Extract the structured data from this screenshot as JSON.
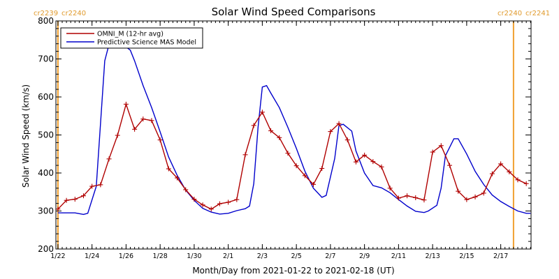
{
  "chart_data": {
    "type": "line",
    "title": "Solar Wind Speed Comparisons",
    "xlabel": "Month/Day from 2021-01-22 to 2021-02-18 (UT)",
    "ylabel": "Solar Wind Speed (km/s)",
    "xlim": [
      "2021-01-22",
      "2021-02-18"
    ],
    "ylim": [
      200,
      800
    ],
    "x_ticks": [
      "1/22",
      "1/24",
      "1/26",
      "1/28",
      "1/30",
      "2/1",
      "2/3",
      "2/5",
      "2/7",
      "2/9",
      "2/11",
      "2/13",
      "2/15",
      "2/17"
    ],
    "y_ticks": [
      200,
      300,
      400,
      500,
      600,
      700,
      800
    ],
    "legend_position": "top-left",
    "cr_labels": {
      "left": [
        "cr2239",
        "cr2240"
      ],
      "right": [
        "cr2240",
        "cr2241"
      ]
    },
    "cr_boundaries": [
      "2021-01-22",
      "2021-02-17 18:00"
    ],
    "series": [
      {
        "name": "OMNI_M (12-hr avg)",
        "color": "#b00000",
        "marker": "plus",
        "points": [
          [
            "2021-01-22 00:00",
            305
          ],
          [
            "2021-01-22 12:00",
            328
          ],
          [
            "2021-01-23 00:00",
            331
          ],
          [
            "2021-01-23 12:00",
            340
          ],
          [
            "2021-01-24 00:00",
            365
          ],
          [
            "2021-01-24 12:00",
            369
          ],
          [
            "2021-01-25 00:00",
            437
          ],
          [
            "2021-01-25 12:00",
            499
          ],
          [
            "2021-01-26 00:00",
            581
          ],
          [
            "2021-01-26 12:00",
            515
          ],
          [
            "2021-01-27 00:00",
            542
          ],
          [
            "2021-01-27 12:00",
            538
          ],
          [
            "2021-01-28 00:00",
            487
          ],
          [
            "2021-01-28 12:00",
            411
          ],
          [
            "2021-01-29 00:00",
            387
          ],
          [
            "2021-01-29 12:00",
            356
          ],
          [
            "2021-01-30 00:00",
            331
          ],
          [
            "2021-01-30 12:00",
            316
          ],
          [
            "2021-01-31 00:00",
            305
          ],
          [
            "2021-01-31 12:00",
            319
          ],
          [
            "2021-02-01 00:00",
            323
          ],
          [
            "2021-02-01 12:00",
            330
          ],
          [
            "2021-02-02 00:00",
            448
          ],
          [
            "2021-02-02 12:00",
            525
          ],
          [
            "2021-02-03 00:00",
            560
          ],
          [
            "2021-02-03 12:00",
            511
          ],
          [
            "2021-02-04 00:00",
            493
          ],
          [
            "2021-02-04 12:00",
            452
          ],
          [
            "2021-02-05 00:00",
            419
          ],
          [
            "2021-02-05 12:00",
            393
          ],
          [
            "2021-02-06 00:00",
            370
          ],
          [
            "2021-02-06 12:00",
            412
          ],
          [
            "2021-02-07 00:00",
            509
          ],
          [
            "2021-02-07 12:00",
            530
          ],
          [
            "2021-02-08 00:00",
            487
          ],
          [
            "2021-02-08 12:00",
            429
          ],
          [
            "2021-02-09 00:00",
            447
          ],
          [
            "2021-02-09 12:00",
            430
          ],
          [
            "2021-02-10 00:00",
            416
          ],
          [
            "2021-02-10 12:00",
            360
          ],
          [
            "2021-02-11 00:00",
            334
          ],
          [
            "2021-02-11 12:00",
            340
          ],
          [
            "2021-02-12 00:00",
            335
          ],
          [
            "2021-02-12 12:00",
            329
          ],
          [
            "2021-02-13 00:00",
            455
          ],
          [
            "2021-02-13 12:00",
            472
          ],
          [
            "2021-02-14 00:00",
            420
          ],
          [
            "2021-02-14 12:00",
            352
          ],
          [
            "2021-02-15 00:00",
            330
          ],
          [
            "2021-02-15 12:00",
            337
          ],
          [
            "2021-02-16 00:00",
            347
          ],
          [
            "2021-02-16 12:00",
            398
          ],
          [
            "2021-02-17 00:00",
            424
          ],
          [
            "2021-02-17 12:00",
            403
          ],
          [
            "2021-02-18 00:00",
            382
          ],
          [
            "2021-02-18 12:00",
            372
          ]
        ]
      },
      {
        "name": "Predictive Science MAS Model",
        "color": "#0000cc",
        "marker": "none",
        "points": [
          [
            "2021-01-22 00:00",
            295
          ],
          [
            "2021-01-22 18:00",
            295
          ],
          [
            "2021-01-23 00:00",
            295
          ],
          [
            "2021-01-23 12:00",
            291
          ],
          [
            "2021-01-23 18:00",
            294
          ],
          [
            "2021-01-24 06:00",
            365
          ],
          [
            "2021-01-24 18:00",
            695
          ],
          [
            "2021-01-25 00:00",
            738
          ],
          [
            "2021-01-25 12:00",
            741
          ],
          [
            "2021-01-25 18:00",
            740
          ],
          [
            "2021-01-26 06:00",
            723
          ],
          [
            "2021-01-26 12:00",
            695
          ],
          [
            "2021-01-27 00:00",
            630
          ],
          [
            "2021-01-27 12:00",
            572
          ],
          [
            "2021-01-28 00:00",
            508
          ],
          [
            "2021-01-28 12:00",
            442
          ],
          [
            "2021-01-29 00:00",
            394
          ],
          [
            "2021-01-29 12:00",
            355
          ],
          [
            "2021-01-30 00:00",
            328
          ],
          [
            "2021-01-30 12:00",
            307
          ],
          [
            "2021-01-31 00:00",
            297
          ],
          [
            "2021-01-31 12:00",
            292
          ],
          [
            "2021-02-01 00:00",
            294
          ],
          [
            "2021-02-01 12:00",
            301
          ],
          [
            "2021-02-02 00:00",
            306
          ],
          [
            "2021-02-02 06:00",
            313
          ],
          [
            "2021-02-02 12:00",
            372
          ],
          [
            "2021-02-02 18:00",
            520
          ],
          [
            "2021-02-03 00:00",
            626
          ],
          [
            "2021-02-03 06:00",
            630
          ],
          [
            "2021-02-03 12:00",
            610
          ],
          [
            "2021-02-04 00:00",
            572
          ],
          [
            "2021-02-04 12:00",
            520
          ],
          [
            "2021-02-05 00:00",
            465
          ],
          [
            "2021-02-05 12:00",
            405
          ],
          [
            "2021-02-06 00:00",
            360
          ],
          [
            "2021-02-06 12:00",
            336
          ],
          [
            "2021-02-06 18:00",
            341
          ],
          [
            "2021-02-07 06:00",
            438
          ],
          [
            "2021-02-07 12:00",
            525
          ],
          [
            "2021-02-07 18:00",
            528
          ],
          [
            "2021-02-08 06:00",
            510
          ],
          [
            "2021-02-08 12:00",
            458
          ],
          [
            "2021-02-09 00:00",
            400
          ],
          [
            "2021-02-09 12:00",
            367
          ],
          [
            "2021-02-10 00:00",
            361
          ],
          [
            "2021-02-10 12:00",
            348
          ],
          [
            "2021-02-11 00:00",
            330
          ],
          [
            "2021-02-11 12:00",
            313
          ],
          [
            "2021-02-12 00:00",
            299
          ],
          [
            "2021-02-12 12:00",
            296
          ],
          [
            "2021-02-12 18:00",
            300
          ],
          [
            "2021-02-13 06:00",
            315
          ],
          [
            "2021-02-13 12:00",
            360
          ],
          [
            "2021-02-13 18:00",
            445
          ],
          [
            "2021-02-14 06:00",
            490
          ],
          [
            "2021-02-14 12:00",
            490
          ],
          [
            "2021-02-15 00:00",
            450
          ],
          [
            "2021-02-15 12:00",
            404
          ],
          [
            "2021-02-16 00:00",
            370
          ],
          [
            "2021-02-16 12:00",
            342
          ],
          [
            "2021-02-17 00:00",
            325
          ],
          [
            "2021-02-17 12:00",
            312
          ],
          [
            "2021-02-18 00:00",
            300
          ],
          [
            "2021-02-18 12:00",
            294
          ],
          [
            "2021-02-18 18:00",
            294
          ]
        ]
      }
    ]
  }
}
